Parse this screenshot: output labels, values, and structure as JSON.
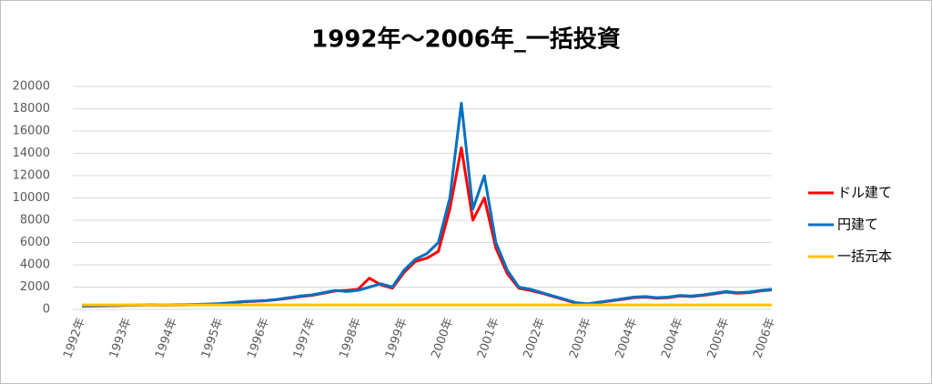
{
  "chart_data": {
    "type": "line",
    "title": "1992年～2006年_一括投資",
    "categories": [
      "1992年",
      null,
      null,
      null,
      "1993年",
      null,
      null,
      null,
      "1994年",
      null,
      null,
      null,
      "1995年",
      null,
      null,
      null,
      "1996年",
      null,
      null,
      null,
      "1997年",
      null,
      null,
      null,
      "1998年",
      null,
      null,
      null,
      "1999年",
      null,
      null,
      null,
      "2000年",
      null,
      null,
      null,
      "2001年",
      null,
      null,
      null,
      "2002年",
      null,
      null,
      null,
      "2003年",
      null,
      null,
      null,
      "2004年",
      null,
      null,
      null,
      "2004年",
      null,
      null,
      null,
      "2005年",
      null,
      null,
      null,
      "2006年"
    ],
    "series": [
      {
        "name": "ドル建て",
        "color": "#ff0000",
        "values": [
          300,
          310,
          320,
          340,
          360,
          380,
          400,
          380,
          390,
          400,
          420,
          450,
          500,
          580,
          680,
          720,
          780,
          880,
          1000,
          1150,
          1250,
          1450,
          1650,
          1700,
          1800,
          2800,
          2200,
          1900,
          3300,
          4300,
          4600,
          5200,
          9000,
          14500,
          8000,
          10000,
          5500,
          3200,
          1900,
          1700,
          1450,
          1150,
          850,
          550,
          480,
          620,
          760,
          900,
          1050,
          1100,
          1000,
          1050,
          1200,
          1150,
          1250,
          1400,
          1550,
          1450,
          1500,
          1650,
          1750
        ]
      },
      {
        "name": "円建て",
        "color": "#0070c0",
        "values": [
          300,
          320,
          330,
          350,
          380,
          400,
          420,
          400,
          420,
          430,
          450,
          480,
          520,
          600,
          700,
          750,
          800,
          900,
          1050,
          1200,
          1300,
          1500,
          1700,
          1600,
          1700,
          2000,
          2300,
          2000,
          3500,
          4500,
          5000,
          6000,
          10000,
          18500,
          9000,
          12000,
          6000,
          3500,
          2000,
          1800,
          1500,
          1200,
          900,
          600,
          500,
          650,
          800,
          950,
          1100,
          1150,
          1050,
          1100,
          1250,
          1200,
          1300,
          1450,
          1600,
          1500,
          1550,
          1700,
          1800
        ]
      },
      {
        "name": "一括元本",
        "color": "#ffc000",
        "values": [
          400,
          400,
          400,
          400,
          400,
          400,
          400,
          400,
          400,
          400,
          400,
          400,
          400,
          400,
          400,
          400,
          400,
          400,
          400,
          400,
          400,
          400,
          400,
          400,
          400,
          400,
          400,
          400,
          400,
          400,
          400,
          400,
          400,
          400,
          400,
          400,
          400,
          400,
          400,
          400,
          400,
          400,
          400,
          400,
          400,
          400,
          400,
          400,
          400,
          400,
          400,
          400,
          400,
          400,
          400,
          400,
          400,
          400,
          400,
          400,
          400
        ]
      }
    ],
    "ylim": [
      0,
      20000
    ],
    "yticks": [
      0,
      2000,
      4000,
      6000,
      8000,
      10000,
      12000,
      14000,
      16000,
      18000,
      20000
    ],
    "grid": true
  }
}
